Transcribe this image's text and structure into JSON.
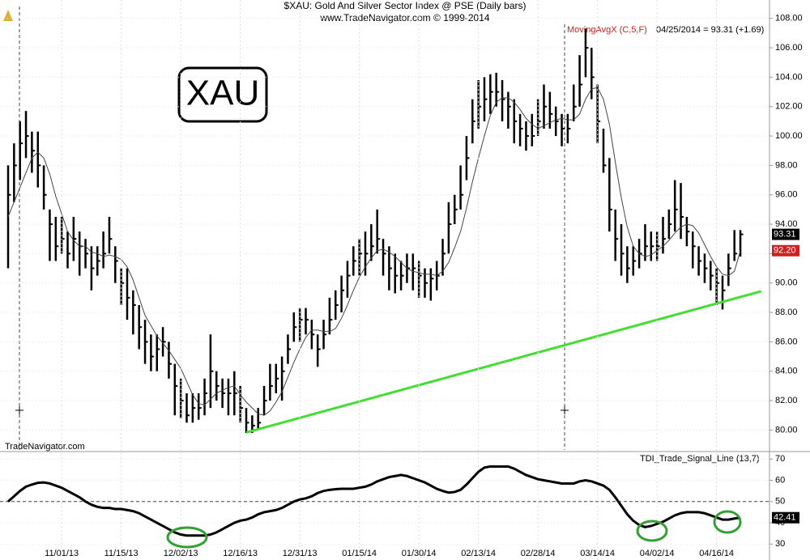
{
  "chart_data": [
    {
      "type": "ohlc",
      "title": "$XAU:  Gold And Silver Sector Index @ PSE  (Daily bars)",
      "subtitle": "www.TradeNavigator.com © 1999-2014",
      "symbol_box": "XAU",
      "watermark": "TradeNavigator.com",
      "status": "04/25/2014 = 93.31 (+1.69)",
      "ylim": [
        78.7,
        108.7
      ],
      "yticks": [
        {
          "value": 80,
          "label": "80.00"
        },
        {
          "value": 82,
          "label": "82.00"
        },
        {
          "value": 84,
          "label": "84.00"
        },
        {
          "value": 86,
          "label": "86.00"
        },
        {
          "value": 88,
          "label": "88.00"
        },
        {
          "value": 90,
          "label": "90.00"
        },
        {
          "value": 92,
          "label": "92.00"
        },
        {
          "value": 94,
          "label": "94.00"
        },
        {
          "value": 96,
          "label": "96.00"
        },
        {
          "value": 98,
          "label": "98.00"
        },
        {
          "value": 100,
          "label": "100.00"
        },
        {
          "value": 102,
          "label": "102.00"
        },
        {
          "value": 104,
          "label": "104.00"
        },
        {
          "value": 106,
          "label": "106.00"
        },
        {
          "value": 108,
          "label": "108.00"
        }
      ],
      "grid": true,
      "series": [
        {
          "name": "$XAU",
          "color": "#000000",
          "high": [
            98,
            99.5,
            101,
            101.7,
            100.3,
            100.3,
            98,
            95,
            94.5,
            94.5,
            93.5,
            94.5,
            93.5,
            93,
            92.5,
            92.5,
            93.5,
            94.5,
            92.5,
            91,
            91,
            89.5,
            88.5,
            87.5,
            86.5,
            86.5,
            87,
            86,
            84.5,
            83.5,
            82.5,
            82.5,
            82.5,
            83.5,
            86.5,
            84,
            83.5,
            83.5,
            84,
            83,
            81.5,
            81,
            81.5,
            83,
            84.5,
            84.5,
            85,
            86.5,
            88,
            88.3,
            88.3,
            87.5,
            86.5,
            87.5,
            89,
            89.5,
            90.5,
            91.5,
            92.5,
            93,
            93.5,
            94,
            95,
            93,
            92.5,
            92,
            91.5,
            92,
            92,
            91.5,
            91,
            91,
            91.5,
            93,
            95.5,
            96,
            98,
            100,
            102.5,
            103.8,
            104,
            104.2,
            104.3,
            103.8,
            103,
            102.5,
            101.5,
            101,
            101.5,
            102.5,
            103.5,
            103,
            102,
            101.5,
            101.5,
            103.5,
            105.5,
            107.3,
            106,
            103.5,
            100.5,
            98.5,
            95,
            94,
            92.5,
            92.5,
            93,
            94,
            93.5,
            93.5,
            94.5,
            95,
            97,
            96.8,
            94.5,
            93.5,
            92.5,
            92,
            91.5,
            91,
            90.5,
            92,
            93.6,
            93.6
          ],
          "low": [
            91,
            95.5,
            97,
            98.5,
            97.5,
            96.5,
            95,
            91.5,
            91.5,
            92,
            91,
            91.5,
            90.5,
            91,
            89.5,
            90.5,
            91,
            92,
            90,
            88.5,
            87.5,
            86.5,
            85.5,
            84.5,
            84,
            84,
            85,
            83.5,
            81,
            80.8,
            80.5,
            80.5,
            80.7,
            81,
            81.5,
            82,
            81.5,
            81,
            81,
            80.5,
            79.8,
            79.8,
            80,
            81,
            82,
            82.5,
            82,
            84.5,
            86,
            86,
            86.5,
            85.5,
            84.3,
            85.5,
            86.5,
            87.5,
            88,
            89,
            90.5,
            90.5,
            90.5,
            91.5,
            92,
            90.5,
            89.5,
            89.3,
            89.5,
            90,
            89.5,
            89,
            89,
            88.8,
            89.5,
            90.5,
            92,
            94,
            95,
            97,
            99.5,
            100.5,
            101,
            101.5,
            102,
            101,
            100.5,
            99.5,
            99.3,
            99,
            99.3,
            100,
            100.5,
            100.5,
            100,
            99.3,
            99.5,
            101,
            102,
            104,
            102.5,
            99.5,
            97.5,
            93.5,
            91.5,
            90.5,
            90,
            90.5,
            91,
            91.5,
            91.5,
            91.5,
            92,
            93,
            93.5,
            93,
            92.5,
            91,
            90.5,
            90,
            89.5,
            88.5,
            88.2,
            89.8,
            91.5,
            91.8
          ],
          "close": [
            96,
            98,
            99.5,
            100,
            99,
            98,
            96,
            94,
            92.5,
            93,
            92,
            93,
            92.5,
            92,
            91,
            91.5,
            92,
            93,
            91.5,
            90,
            89,
            88.5,
            87,
            86,
            85,
            85.5,
            86,
            84.5,
            83,
            82,
            81,
            81.5,
            81.5,
            82.5,
            84,
            83,
            82.5,
            82.5,
            82.5,
            81.5,
            80.5,
            80.3,
            80.5,
            82,
            83,
            83.5,
            84,
            85.5,
            87,
            87.5,
            87.5,
            86.5,
            85.5,
            86.5,
            87.5,
            88.5,
            89.5,
            90.5,
            91.5,
            92,
            92,
            92.5,
            93,
            92,
            91,
            90.5,
            90.5,
            91,
            91,
            90.5,
            90,
            90.3,
            90.5,
            92,
            94,
            95,
            96,
            98.5,
            101,
            102,
            102.5,
            103,
            103,
            102.5,
            102,
            101,
            100.5,
            100,
            100,
            101,
            102,
            101.5,
            101,
            100.5,
            100.5,
            102,
            103.5,
            106,
            104,
            101,
            98,
            95,
            93,
            92,
            91,
            91.5,
            92,
            92.5,
            92.5,
            92.5,
            93,
            94,
            95,
            94.5,
            93.5,
            92.5,
            91.5,
            91,
            90.5,
            90,
            89.5,
            91,
            92,
            93.31
          ]
        },
        {
          "name": "MovingAvgX (C,5,F)",
          "color": "#444444",
          "label_color": "#cc2222",
          "values": [
            94.5,
            95.5,
            96.5,
            97.5,
            98.5,
            98.9,
            98.5,
            97.4,
            95.9,
            94.7,
            93.5,
            92.9,
            92.5,
            92.5,
            92.1,
            92,
            91.8,
            91.9,
            91.8,
            91.6,
            91.1,
            90.2,
            89,
            87.8,
            87.1,
            86.4,
            85.9,
            85.4,
            84.8,
            84.2,
            83.3,
            82.4,
            81.8,
            81.7,
            82.1,
            82.5,
            82.7,
            82.9,
            83,
            82.4,
            81.9,
            81.5,
            81.1,
            81,
            81.3,
            81.9,
            82.6,
            83.6,
            84.6,
            85.5,
            86.3,
            86.8,
            86.8,
            86.7,
            86.7,
            86.9,
            87.6,
            88.5,
            89.5,
            90.4,
            91.1,
            91.7,
            92.2,
            92.3,
            92.1,
            91.8,
            91.4,
            91,
            90.8,
            90.7,
            90.6,
            90.6,
            90.5,
            90.8,
            91.4,
            92.4,
            93.5,
            95.1,
            96.9,
            98.5,
            100,
            101.4,
            102.3,
            102.6,
            102.6,
            102.3,
            101.8,
            101.2,
            100.8,
            100.5,
            100.7,
            100.9,
            101.1,
            101.2,
            101.1,
            101.1,
            101.5,
            102.5,
            103.2,
            103.3,
            102.5,
            100.8,
            98.2,
            95.8,
            93.8,
            92.5,
            92,
            91.8,
            91.9,
            92.2,
            92.5,
            92.9,
            93.4,
            93.8,
            94,
            93.9,
            93.4,
            92.6,
            91.8,
            91.1,
            90.6,
            90.5,
            90.8,
            92.2
          ],
          "value_labels": [
            null,
            null,
            null,
            null,
            null,
            null,
            null,
            null,
            null,
            null,
            null,
            null,
            null,
            null,
            null,
            null,
            null,
            null,
            null,
            null,
            null,
            null,
            null,
            null,
            null,
            null,
            null,
            null,
            null,
            null,
            null,
            null,
            null,
            null,
            null,
            null,
            null,
            null,
            null,
            null,
            null,
            null,
            null,
            null,
            null,
            null,
            null,
            null,
            null,
            null,
            null,
            null,
            null,
            null,
            null,
            null,
            null,
            null,
            null,
            null,
            null,
            null,
            null,
            null,
            null,
            null,
            null,
            null,
            null,
            null,
            null,
            null,
            null,
            null,
            null,
            null,
            null,
            null,
            null,
            null,
            null,
            null,
            null,
            null,
            null,
            null,
            null,
            null,
            null,
            null,
            null,
            null,
            null,
            null,
            null,
            null,
            null,
            null,
            null,
            null,
            null,
            null,
            null,
            null,
            null,
            null,
            null,
            null,
            null,
            null,
            null,
            null,
            null,
            null,
            null,
            null,
            null,
            null,
            null,
            null,
            null,
            null,
            null,
            "92.20"
          ]
        }
      ],
      "trendline": {
        "color": "#44dd33",
        "x": [
          40,
          126.5
        ],
        "values": [
          79.83,
          89.44
        ]
      }
    },
    {
      "type": "line",
      "title": "TDI_Trade_Signal_Line (13,7)",
      "ylim": [
        22.5,
        72
      ],
      "yticks": [
        30,
        40,
        50,
        60,
        70
      ],
      "reference_line": 50,
      "grid": true,
      "categories": [
        null,
        null,
        null,
        null,
        null,
        null,
        null,
        null,
        null,
        "11/01/13",
        null,
        null,
        null,
        null,
        null,
        null,
        null,
        null,
        null,
        "11/15/13",
        null,
        null,
        null,
        null,
        null,
        null,
        null,
        null,
        null,
        "12/02/13",
        null,
        null,
        null,
        null,
        null,
        null,
        null,
        null,
        null,
        "12/16/13",
        null,
        null,
        null,
        null,
        null,
        null,
        null,
        null,
        null,
        "12/31/13",
        null,
        null,
        null,
        null,
        null,
        null,
        null,
        null,
        null,
        "01/15/14",
        null,
        null,
        null,
        null,
        null,
        null,
        null,
        null,
        null,
        "01/30/14",
        null,
        null,
        null,
        null,
        null,
        null,
        null,
        null,
        null,
        "02/13/14",
        null,
        null,
        null,
        null,
        null,
        null,
        null,
        null,
        null,
        "02/28/14",
        null,
        null,
        null,
        null,
        null,
        null,
        null,
        null,
        null,
        "03/14/14",
        null,
        null,
        null,
        null,
        null,
        null,
        null,
        null,
        null,
        "04/02/14",
        null,
        null,
        null,
        null,
        null,
        null,
        null,
        null,
        null,
        "04/16/14",
        null,
        null,
        null,
        null
      ],
      "series": [
        {
          "name": "TDI_Trade_Signal_Line",
          "color": "#000000",
          "values": [
            50,
            52.5,
            55,
            57,
            58,
            58.8,
            59,
            58.5,
            57.5,
            56.5,
            55,
            53.5,
            52,
            50,
            48.5,
            47.5,
            47,
            47,
            46.5,
            46.5,
            46,
            45.5,
            44.5,
            43,
            41.5,
            40,
            38.5,
            37,
            35.5,
            34.5,
            34,
            34,
            34,
            34,
            34.5,
            35.5,
            37,
            38.5,
            40,
            41,
            41.5,
            42.5,
            44,
            45,
            45.5,
            46,
            47,
            48.5,
            50,
            51,
            51.5,
            52.5,
            54,
            55,
            55.5,
            55.8,
            56,
            56,
            56,
            56.5,
            57,
            58,
            59.5,
            60.5,
            61.5,
            62,
            62.5,
            62,
            61,
            60,
            59,
            57.5,
            56,
            55,
            54.2,
            54.5,
            55.5,
            58,
            61,
            64,
            66,
            66.5,
            66.5,
            66.5,
            66.5,
            65.5,
            64,
            62.5,
            61.5,
            60.5,
            60,
            59.5,
            59,
            58.5,
            58.5,
            58.5,
            59.5,
            60,
            59.5,
            58.5,
            57.5,
            55.5,
            52,
            48,
            44,
            41,
            39,
            38,
            38.5,
            39.5,
            40.5,
            42,
            43.5,
            44.5,
            45,
            45,
            45,
            44.5,
            43.5,
            42.5,
            41.5,
            41.5,
            42,
            42.41
          ]
        }
      ]
    }
  ]
}
